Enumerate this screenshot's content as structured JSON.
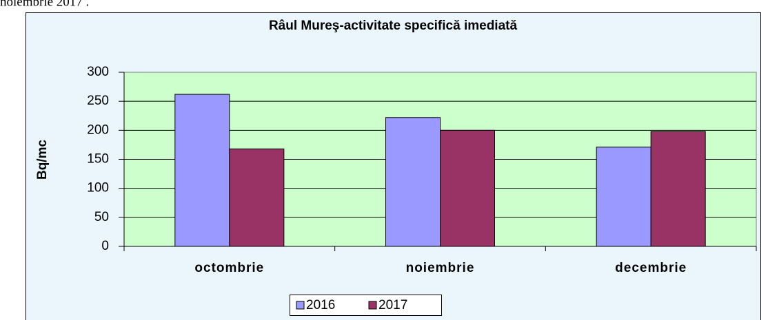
{
  "header_text": "noiembrie 2017 .",
  "chart_data": {
    "type": "bar",
    "title": "Râul Mureş-activitate specifică imediată",
    "y_label": "Bq/mc",
    "categories": [
      "octombrie",
      "noiembrie",
      "decembrie"
    ],
    "series": [
      {
        "name": "2016",
        "color": "#9999ff",
        "values": [
          262,
          222,
          171
        ]
      },
      {
        "name": "2017",
        "color": "#993366",
        "values": [
          168,
          200,
          198
        ]
      }
    ],
    "ylim": [
      0,
      300
    ],
    "yticks": [
      0,
      50,
      100,
      150,
      200,
      250,
      300
    ],
    "grid": true,
    "legend": "bottom"
  }
}
